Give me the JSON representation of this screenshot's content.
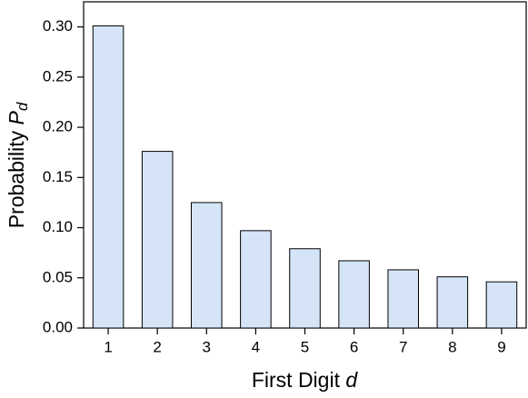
{
  "chart_data": {
    "type": "bar",
    "x_label": "First Digit",
    "x_label_symbol": "d",
    "y_label": "Probability",
    "y_label_symbol": "P",
    "y_label_subscript": "d",
    "categories": [
      "1",
      "2",
      "3",
      "4",
      "5",
      "6",
      "7",
      "8",
      "9"
    ],
    "values": [
      0.301,
      0.176,
      0.125,
      0.097,
      0.079,
      0.067,
      0.058,
      0.051,
      0.046
    ],
    "color": "#d5e5f7",
    "ylim": [
      0,
      0.325
    ],
    "yticks": [
      {
        "value": 0,
        "label": "0.00"
      },
      {
        "value": 0.05,
        "label": "0.05"
      },
      {
        "value": 0.1,
        "label": "0.10"
      },
      {
        "value": 0.15,
        "label": "0.15"
      },
      {
        "value": 0.2,
        "label": "0.20"
      },
      {
        "value": 0.25,
        "label": "0.25"
      },
      {
        "value": 0.3,
        "label": "0.30"
      }
    ],
    "grid": false
  }
}
